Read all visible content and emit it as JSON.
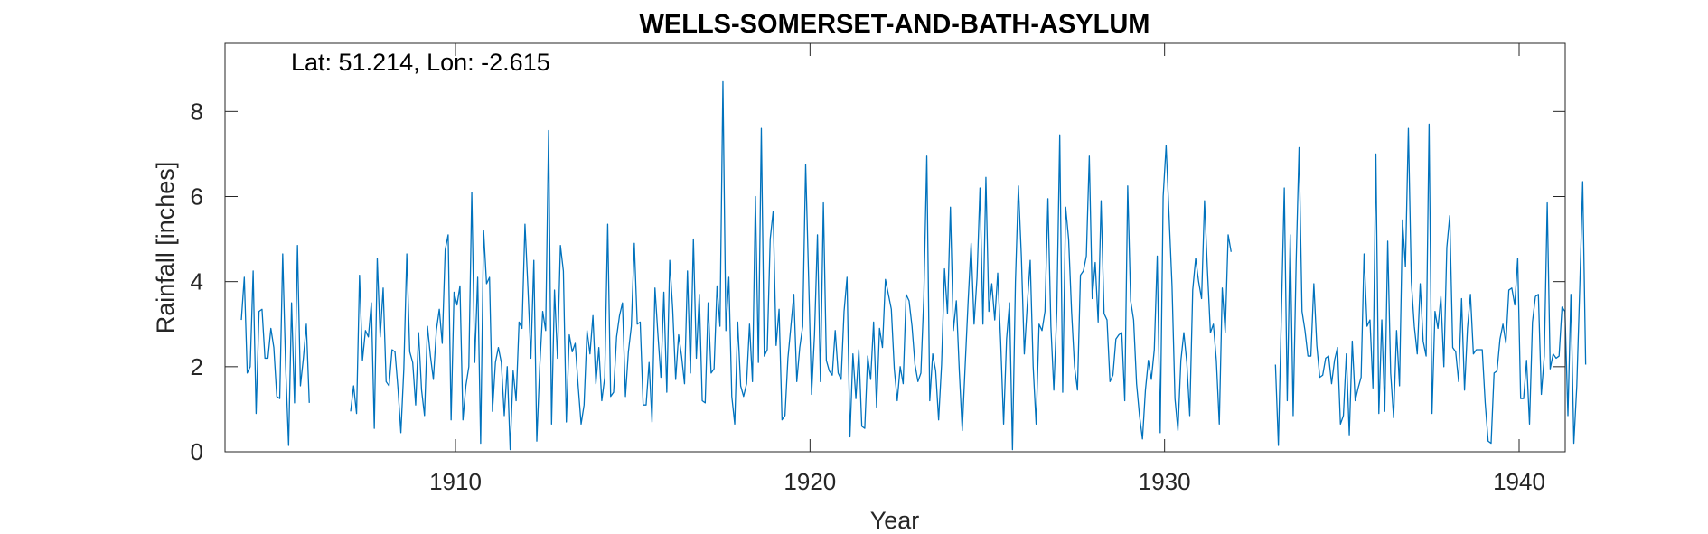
{
  "chart_data": {
    "type": "line",
    "title": "WELLS-SOMERSET-AND-BATH-ASYLUM",
    "annotation": "Lat: 51.214, Lon: -2.615",
    "xlabel": "Year",
    "ylabel": "Rainfall [inches]",
    "xlim": [
      1903.5,
      1941.3
    ],
    "ylim": [
      0,
      9.6
    ],
    "x_ticks": [
      1910,
      1920,
      1930,
      1940
    ],
    "x_tick_labels": [
      "1910",
      "1920",
      "1930",
      "1940"
    ],
    "y_ticks": [
      0,
      2,
      4,
      6,
      8
    ],
    "y_tick_labels": [
      "0",
      "2",
      "4",
      "6",
      "8"
    ],
    "grid": false,
    "line_color": "#0072BD",
    "series": [
      {
        "x_start": 1903.96,
        "x_step": 0.0833333,
        "values": [
          3.1,
          4.1,
          1.85,
          2.0,
          4.25,
          0.9,
          3.3,
          3.35,
          2.2,
          2.2,
          2.9,
          2.45,
          1.3,
          1.25,
          4.65,
          2.0,
          0.15,
          3.5,
          1.15,
          4.85,
          1.55,
          2.2,
          3.0,
          1.15,
          null,
          null,
          null,
          null,
          null,
          null,
          null,
          null,
          null,
          null,
          null,
          null,
          null,
          0.95,
          1.55,
          0.9,
          4.15,
          2.15,
          2.85,
          2.7,
          3.5,
          0.55,
          4.55,
          2.7,
          3.85,
          1.65,
          1.55,
          2.4,
          2.35,
          1.5,
          0.45,
          1.95,
          4.65,
          2.35,
          2.1,
          1.1,
          2.8,
          1.45,
          0.85,
          2.95,
          2.25,
          1.7,
          2.85,
          3.35,
          2.55,
          4.75,
          5.1,
          0.75,
          3.75,
          3.45,
          3.9,
          0.75,
          1.55,
          2.0,
          6.1,
          2.1,
          4.1,
          0.2,
          5.2,
          3.95,
          4.1,
          0.95,
          2.1,
          2.45,
          2.1,
          0.85,
          2.0,
          0.05,
          1.9,
          1.2,
          3.05,
          2.9,
          5.35,
          3.85,
          2.2,
          4.5,
          0.25,
          2.0,
          3.3,
          2.85,
          7.55,
          0.65,
          3.8,
          2.2,
          4.85,
          4.25,
          0.7,
          2.75,
          2.35,
          2.55,
          1.55,
          0.65,
          1.1,
          2.85,
          2.3,
          3.2,
          1.6,
          2.45,
          1.2,
          1.75,
          5.35,
          1.3,
          1.4,
          2.7,
          3.2,
          3.5,
          1.3,
          2.35,
          2.95,
          4.9,
          3.0,
          3.05,
          1.1,
          1.1,
          2.1,
          0.7,
          3.85,
          2.75,
          1.75,
          3.75,
          1.4,
          4.5,
          3.35,
          1.7,
          2.75,
          2.25,
          1.6,
          4.25,
          1.85,
          5.0,
          2.2,
          3.7,
          1.2,
          1.15,
          3.5,
          1.85,
          1.95,
          3.9,
          2.95,
          8.7,
          2.85,
          4.1,
          1.3,
          0.65,
          3.05,
          1.55,
          1.3,
          1.6,
          3.0,
          1.65,
          6.0,
          2.1,
          7.6,
          2.25,
          2.4,
          5.0,
          5.65,
          2.5,
          3.35,
          0.75,
          0.85,
          2.2,
          2.95,
          3.7,
          1.65,
          2.45,
          2.95,
          6.75,
          4.1,
          1.35,
          2.75,
          5.1,
          1.65,
          5.85,
          2.15,
          1.9,
          1.8,
          2.85,
          1.85,
          1.7,
          3.3,
          4.1,
          0.35,
          2.3,
          1.25,
          2.4,
          0.6,
          0.55,
          2.25,
          1.7,
          3.05,
          1.05,
          2.9,
          2.45,
          4.05,
          3.7,
          3.35,
          1.95,
          1.2,
          2.0,
          1.6,
          3.7,
          3.55,
          2.95,
          2.05,
          1.65,
          1.85,
          3.65,
          6.95,
          1.2,
          2.3,
          1.9,
          0.75,
          2.05,
          4.3,
          3.25,
          5.75,
          2.85,
          3.55,
          1.9,
          0.5,
          2.05,
          3.55,
          4.9,
          3.0,
          4.1,
          6.2,
          3.0,
          6.45,
          3.3,
          3.95,
          3.1,
          4.2,
          2.6,
          0.65,
          2.65,
          3.5,
          0.05,
          4.0,
          6.25,
          4.6,
          2.3,
          3.45,
          4.5,
          2.0,
          0.65,
          3.0,
          2.85,
          3.3,
          5.95,
          2.95,
          1.45,
          3.3,
          7.45,
          1.4,
          5.75,
          5.0,
          3.3,
          2.0,
          1.45,
          4.15,
          4.25,
          4.6,
          6.95,
          3.6,
          4.45,
          3.05,
          5.9,
          3.25,
          3.1,
          1.65,
          1.8,
          2.65,
          2.75,
          2.8,
          1.2,
          6.25,
          3.55,
          3.1,
          1.6,
          0.85,
          0.3,
          1.45,
          2.15,
          1.7,
          2.4,
          4.6,
          0.45,
          6.0,
          7.2,
          5.55,
          3.9,
          1.25,
          0.5,
          2.15,
          2.8,
          2.1,
          0.85,
          3.8,
          4.55,
          4.0,
          3.6,
          5.9,
          4.25,
          2.8,
          3.0,
          2.15,
          0.65,
          3.85,
          2.8,
          5.1,
          4.7,
          null,
          null,
          null,
          null,
          null,
          null,
          null,
          null,
          null,
          null,
          null,
          null,
          null,
          null,
          2.05,
          0.15,
          3.2,
          6.2,
          1.2,
          5.1,
          0.85,
          4.45,
          7.15,
          3.3,
          2.85,
          2.25,
          2.25,
          3.95,
          2.5,
          1.75,
          1.8,
          2.2,
          2.25,
          1.6,
          2.15,
          2.45,
          0.65,
          0.85,
          2.3,
          0.4,
          2.6,
          1.2,
          1.5,
          1.75,
          4.65,
          2.95,
          3.1,
          1.5,
          7.0,
          0.9,
          3.1,
          0.95,
          4.95,
          1.85,
          0.8,
          2.85,
          1.55,
          5.45,
          4.35,
          7.6,
          4.0,
          2.95,
          2.3,
          3.95,
          2.6,
          2.25,
          7.7,
          0.9,
          3.3,
          2.9,
          3.65,
          2.0,
          4.8,
          5.55,
          2.45,
          2.35,
          1.65,
          3.6,
          1.45,
          2.9,
          3.7,
          2.3,
          2.4,
          2.4,
          2.4,
          1.15,
          0.25,
          0.2,
          1.85,
          1.9,
          2.65,
          3.0,
          2.55,
          3.8,
          3.85,
          3.45,
          4.55,
          1.25,
          1.25,
          2.15,
          0.65,
          3.05,
          3.65,
          3.7,
          1.35,
          2.25,
          5.85,
          1.95,
          2.3,
          2.2,
          2.25,
          3.4,
          3.3,
          0.85,
          3.7,
          0.2,
          1.55,
          3.85,
          6.35,
          2.05
        ]
      }
    ]
  }
}
